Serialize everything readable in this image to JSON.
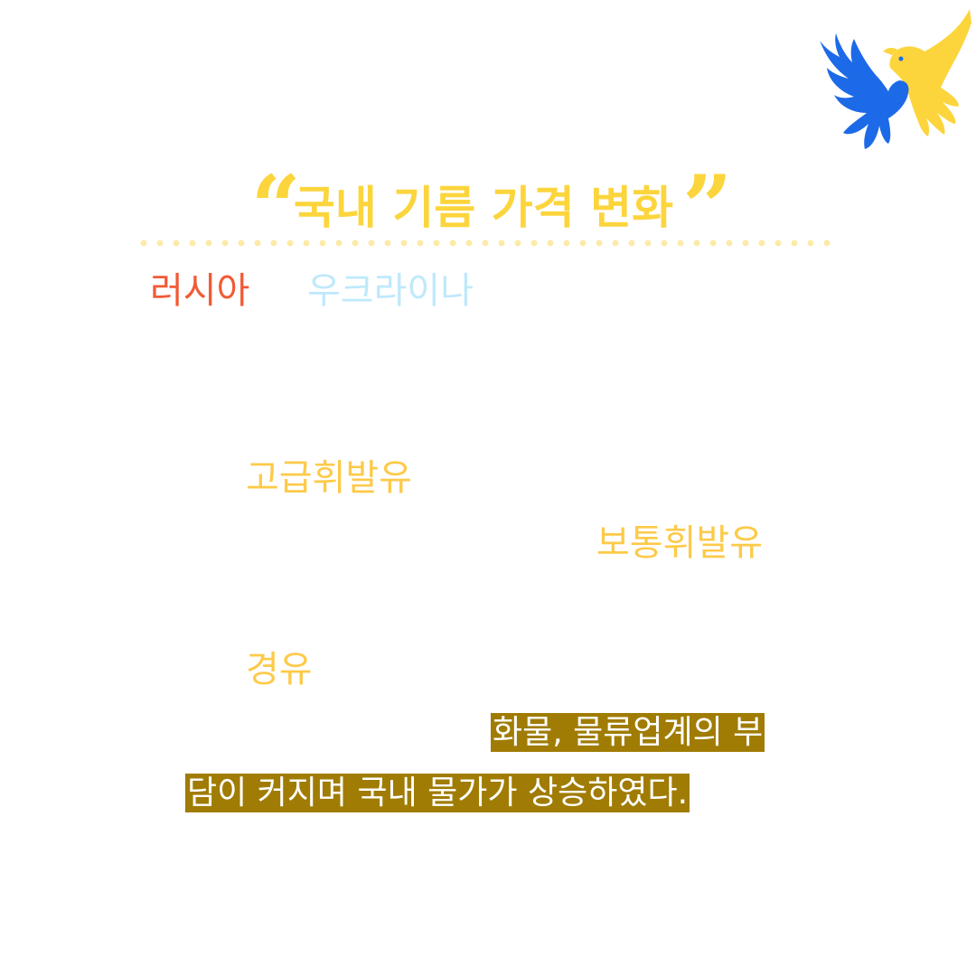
{
  "title": {
    "open_quote": "“",
    "text": "국내 기름 가격 변화",
    "close_quote": "”"
  },
  "tags": {
    "russia": "러시아",
    "ukraine": "우크라이나"
  },
  "fuels": {
    "premium": "고급휘발유",
    "regular": "보통휘발유",
    "diesel": "경유"
  },
  "summary": {
    "line1": "화물, 물류업계의 부",
    "line2": "담이 커지며 국내 물가가 상승하였다."
  },
  "colors": {
    "title": "#fcd53d",
    "russia": "#f25a36",
    "ukraine": "#bfe9fb",
    "fuel": "#fdca49",
    "highlight": "#a07c04",
    "dove_blue": "#1d6ae8",
    "dove_yellow": "#fcd53d"
  },
  "icons": {
    "logo": "peace-doves-icon"
  }
}
